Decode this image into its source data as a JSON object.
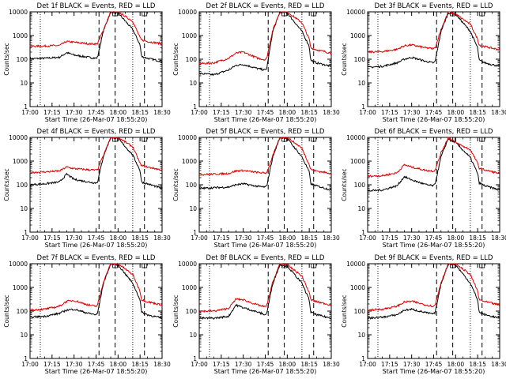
{
  "figure": {
    "start_time_label": "Start Time (26-Mar-07 18:55:20)",
    "ylabel": "Counts/sec",
    "series_colors": {
      "events": "#000000",
      "lld": "#e00000"
    }
  },
  "chart_data": [
    {
      "type": "line",
      "title": "Det 1f BLACK = Events, RED = LLD",
      "xlabel": "Start Time (26-Mar-07 18:55:20)",
      "ylabel": "Counts/sec",
      "yscale": "log",
      "xticks": [
        "17:00",
        "17:15",
        "17:30",
        "17:45",
        "18:00",
        "18:15",
        "18:30"
      ],
      "yticks": [
        "1",
        "10",
        "100",
        "1000",
        "10000"
      ],
      "ylim": [
        1,
        10000
      ],
      "x_minutes": [
        0,
        10,
        20,
        25,
        30,
        40,
        45,
        46,
        50,
        55,
        60,
        70,
        75,
        76,
        80,
        90
      ],
      "series": [
        {
          "name": "BLACK = Events",
          "color": "#000000",
          "values": [
            105,
            110,
            120,
            190,
            150,
            120,
            110,
            120,
            1600,
            10000,
            9000,
            1800,
            400,
            130,
            110,
            80
          ]
        },
        {
          "name": "RED = LLD",
          "color": "#e00000",
          "values": [
            350,
            360,
            380,
            560,
            520,
            450,
            440,
            460,
            1700,
            10000,
            10000,
            4000,
            800,
            650,
            560,
            450
          ]
        }
      ],
      "dotted_minutes": [
        7,
        70
      ],
      "dashed_minutes": [
        47,
        58,
        78
      ]
    },
    {
      "type": "line",
      "title": "Det 2f BLACK = Events, RED = LLD",
      "xlabel": "Start Time (26-Mar-07 18:55:20)",
      "ylabel": "Counts/sec",
      "yscale": "log",
      "xticks": [
        "17:00",
        "17:15",
        "17:30",
        "17:45",
        "18:00",
        "18:15",
        "18:30"
      ],
      "yticks": [
        "1",
        "10",
        "100",
        "1000",
        "10000"
      ],
      "ylim": [
        1,
        10000
      ],
      "x_minutes": [
        0,
        10,
        20,
        25,
        30,
        40,
        45,
        46,
        50,
        55,
        60,
        70,
        75,
        76,
        80,
        90
      ],
      "series": [
        {
          "name": "BLACK = Events",
          "color": "#000000",
          "values": [
            25,
            22,
            35,
            55,
            60,
            40,
            35,
            40,
            1400,
            10000,
            9000,
            1500,
            350,
            90,
            70,
            50
          ]
        },
        {
          "name": "RED = LLD",
          "color": "#e00000",
          "values": [
            65,
            70,
            110,
            180,
            200,
            110,
            95,
            110,
            1600,
            10000,
            10000,
            3500,
            700,
            300,
            250,
            180
          ]
        }
      ],
      "dotted_minutes": [
        7,
        70
      ],
      "dashed_minutes": [
        47,
        58,
        78
      ]
    },
    {
      "type": "line",
      "title": "Det 3f BLACK = Events, RED = LLD",
      "xlabel": "Start Time (26-Mar-07 18:55:20)",
      "ylabel": "Counts/sec",
      "yscale": "log",
      "xticks": [
        "17:00",
        "17:15",
        "17:30",
        "17:45",
        "18:00",
        "18:15",
        "18:30"
      ],
      "yticks": [
        "1",
        "10",
        "100",
        "1000",
        "10000"
      ],
      "ylim": [
        1,
        10000
      ],
      "x_minutes": [
        0,
        10,
        20,
        25,
        30,
        40,
        45,
        46,
        50,
        55,
        60,
        70,
        75,
        76,
        80,
        90
      ],
      "series": [
        {
          "name": "BLACK = Events",
          "color": "#000000",
          "values": [
            45,
            50,
            70,
            100,
            120,
            80,
            70,
            80,
            1500,
            9000,
            8000,
            1500,
            300,
            90,
            70,
            50
          ]
        },
        {
          "name": "RED = LLD",
          "color": "#e00000",
          "values": [
            200,
            210,
            260,
            370,
            400,
            300,
            280,
            300,
            1800,
            10000,
            8000,
            3000,
            700,
            400,
            340,
            250
          ]
        }
      ],
      "dotted_minutes": [
        7,
        70
      ],
      "dashed_minutes": [
        47,
        58,
        78
      ]
    },
    {
      "type": "line",
      "title": "Det 4f BLACK = Events, RED = LLD",
      "xlabel": "Start Time (26-Mar-07 18:55:20)",
      "ylabel": "Counts/sec",
      "yscale": "log",
      "xticks": [
        "17:00",
        "17:15",
        "17:30",
        "17:45",
        "18:00",
        "18:15",
        "18:30"
      ],
      "yticks": [
        "1",
        "10",
        "100",
        "1000",
        "10000"
      ],
      "ylim": [
        1,
        10000
      ],
      "x_minutes": [
        0,
        10,
        20,
        25,
        30,
        40,
        45,
        46,
        50,
        55,
        60,
        70,
        75,
        76,
        80,
        90
      ],
      "series": [
        {
          "name": "BLACK = Events",
          "color": "#000000",
          "values": [
            100,
            110,
            130,
            280,
            170,
            130,
            120,
            130,
            1600,
            10000,
            9000,
            1800,
            400,
            130,
            110,
            70
          ]
        },
        {
          "name": "RED = LLD",
          "color": "#e00000",
          "values": [
            330,
            350,
            380,
            560,
            480,
            430,
            410,
            430,
            1700,
            10000,
            10000,
            4000,
            800,
            650,
            560,
            420
          ]
        }
      ],
      "dotted_minutes": [
        7,
        70
      ],
      "dashed_minutes": [
        47,
        58,
        78
      ]
    },
    {
      "type": "line",
      "title": "Det 5f BLACK = Events, RED = LLD",
      "xlabel": "Start Time (26-Mar-07 18:55:20)",
      "ylabel": "Counts/sec",
      "yscale": "log",
      "xticks": [
        "17:00",
        "17:15",
        "17:30",
        "17:45",
        "18:00",
        "18:15",
        "18:30"
      ],
      "yticks": [
        "1",
        "10",
        "100",
        "1000",
        "10000"
      ],
      "ylim": [
        1,
        10000
      ],
      "x_minutes": [
        0,
        10,
        20,
        25,
        30,
        40,
        45,
        46,
        50,
        55,
        60,
        70,
        75,
        76,
        80,
        90
      ],
      "series": [
        {
          "name": "BLACK = Events",
          "color": "#000000",
          "values": [
            70,
            75,
            80,
            100,
            110,
            85,
            80,
            90,
            1400,
            10000,
            9000,
            1500,
            350,
            110,
            90,
            60
          ]
        },
        {
          "name": "RED = LLD",
          "color": "#e00000",
          "values": [
            270,
            280,
            300,
            380,
            400,
            330,
            310,
            330,
            1600,
            10000,
            10000,
            3500,
            700,
            450,
            380,
            300
          ]
        }
      ],
      "dotted_minutes": [
        7,
        70
      ],
      "dashed_minutes": [
        47,
        58,
        78
      ]
    },
    {
      "type": "line",
      "title": "Det 6f BLACK = Events, RED = LLD",
      "xlabel": "Start Time (26-Mar-07 18:55:20)",
      "ylabel": "Counts/sec",
      "yscale": "log",
      "xticks": [
        "17:00",
        "17:15",
        "17:30",
        "17:45",
        "18:00",
        "18:15",
        "18:30"
      ],
      "yticks": [
        "1",
        "10",
        "100",
        "1000",
        "10000"
      ],
      "ylim": [
        1,
        10000
      ],
      "x_minutes": [
        0,
        10,
        20,
        25,
        30,
        40,
        45,
        46,
        50,
        55,
        60,
        70,
        75,
        76,
        80,
        90
      ],
      "series": [
        {
          "name": "BLACK = Events",
          "color": "#000000",
          "values": [
            55,
            60,
            90,
            220,
            160,
            100,
            90,
            110,
            1500,
            9000,
            6000,
            1400,
            300,
            120,
            90,
            60
          ]
        },
        {
          "name": "RED = LLD",
          "color": "#e00000",
          "values": [
            230,
            240,
            320,
            700,
            560,
            400,
            380,
            420,
            2200,
            10000,
            6000,
            3000,
            800,
            500,
            420,
            300
          ]
        }
      ],
      "dotted_minutes": [
        7,
        70
      ],
      "dashed_minutes": [
        47,
        58,
        78
      ]
    },
    {
      "type": "line",
      "title": "Det 7f BLACK = Events, RED = LLD",
      "xlabel": "Start Time (26-Mar-07 18:55:20)",
      "ylabel": "Counts/sec",
      "yscale": "log",
      "xticks": [
        "17:00",
        "17:15",
        "17:30",
        "17:45",
        "18:00",
        "18:15",
        "18:30"
      ],
      "yticks": [
        "1",
        "10",
        "100",
        "1000",
        "10000"
      ],
      "ylim": [
        1,
        10000
      ],
      "x_minutes": [
        0,
        10,
        20,
        25,
        30,
        40,
        45,
        46,
        50,
        55,
        60,
        70,
        75,
        76,
        80,
        90
      ],
      "series": [
        {
          "name": "BLACK = Events",
          "color": "#000000",
          "values": [
            55,
            60,
            80,
            110,
            120,
            80,
            70,
            80,
            1500,
            10000,
            9000,
            1500,
            300,
            90,
            70,
            50
          ]
        },
        {
          "name": "RED = LLD",
          "color": "#e00000",
          "values": [
            110,
            120,
            160,
            260,
            280,
            180,
            160,
            180,
            1700,
            10000,
            10000,
            3500,
            700,
            300,
            250,
            180
          ]
        }
      ],
      "dotted_minutes": [
        7,
        70
      ],
      "dashed_minutes": [
        47,
        58,
        78
      ]
    },
    {
      "type": "line",
      "title": "Det 8f BLACK = Events, RED = LLD",
      "xlabel": "Start Time (26-Mar-07 18:55:20)",
      "ylabel": "Counts/sec",
      "yscale": "log",
      "xticks": [
        "17:00",
        "17:15",
        "17:30",
        "17:45",
        "18:00",
        "18:15",
        "18:30"
      ],
      "yticks": [
        "1",
        "10",
        "100",
        "1000",
        "10000"
      ],
      "ylim": [
        1,
        10000
      ],
      "x_minutes": [
        0,
        10,
        20,
        25,
        30,
        40,
        45,
        46,
        50,
        55,
        60,
        70,
        75,
        76,
        80,
        90
      ],
      "series": [
        {
          "name": "BLACK = Events",
          "color": "#000000",
          "values": [
            50,
            50,
            60,
            180,
            140,
            90,
            70,
            80,
            1400,
            9000,
            8000,
            1500,
            300,
            90,
            70,
            50
          ]
        },
        {
          "name": "RED = LLD",
          "color": "#e00000",
          "values": [
            100,
            100,
            130,
            320,
            300,
            180,
            150,
            170,
            1600,
            10000,
            9000,
            3000,
            600,
            300,
            250,
            180
          ]
        }
      ],
      "dotted_minutes": [
        7,
        70
      ],
      "dashed_minutes": [
        47,
        58,
        78
      ]
    },
    {
      "type": "line",
      "title": "Det 9f BLACK = Events, RED = LLD",
      "xlabel": "Start Time (26-Mar-07 18:55:20)",
      "ylabel": "Counts/sec",
      "yscale": "log",
      "xticks": [
        "17:00",
        "17:15",
        "17:30",
        "17:45",
        "18:00",
        "18:15",
        "18:30"
      ],
      "yticks": [
        "1",
        "10",
        "100",
        "1000",
        "10000"
      ],
      "ylim": [
        1,
        10000
      ],
      "x_minutes": [
        0,
        10,
        20,
        25,
        30,
        40,
        45,
        46,
        50,
        55,
        60,
        70,
        75,
        76,
        80,
        90
      ],
      "series": [
        {
          "name": "BLACK = Events",
          "color": "#000000",
          "values": [
            50,
            55,
            70,
            110,
            120,
            85,
            75,
            85,
            1400,
            10000,
            9000,
            1500,
            300,
            90,
            70,
            50
          ]
        },
        {
          "name": "RED = LLD",
          "color": "#e00000",
          "values": [
            110,
            120,
            160,
            240,
            260,
            180,
            160,
            180,
            1600,
            10000,
            10000,
            3500,
            700,
            300,
            250,
            180
          ]
        }
      ],
      "dotted_minutes": [
        7,
        70
      ],
      "dashed_minutes": [
        47,
        58,
        78
      ]
    }
  ]
}
